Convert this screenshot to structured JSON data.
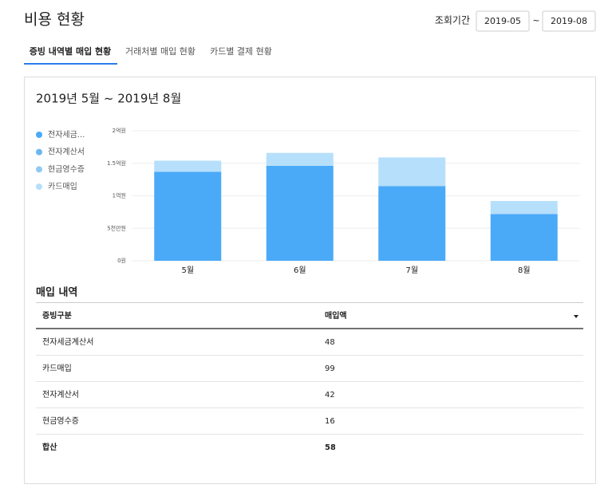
{
  "header": {
    "title": "비용 현황",
    "period_label": "조회기간",
    "start": "2019-05",
    "separator": "~",
    "end": "2019-08"
  },
  "tabs": [
    "증빙 내역별 매입 현황",
    "거래처별 매입 현황",
    "카드별 결제 현황"
  ],
  "chart_data": {
    "type": "stacked_bar",
    "title": "2019년 5월 ~ 2019년 8월",
    "categories": [
      "5월",
      "6월",
      "7월",
      "8월"
    ],
    "series": [
      {
        "name": "전자세금...",
        "color": "#4aaaf7",
        "values": [
          137000000,
          146000000,
          115000000,
          72000000
        ]
      },
      {
        "name": "전자계산서",
        "color": "#6bb6ef",
        "values": [
          0,
          0,
          0,
          0
        ]
      },
      {
        "name": "현금영수증",
        "color": "#8fcaf3",
        "values": [
          0,
          0,
          0,
          0
        ]
      },
      {
        "name": "카드매입",
        "color": "#b6dffb",
        "values": [
          17000000,
          20000000,
          44000000,
          20000000
        ]
      }
    ],
    "ylim": [
      0,
      200000000
    ],
    "yticks": [
      {
        "value": 0,
        "label": "0원"
      },
      {
        "value": 50000000,
        "label": "5천만원"
      },
      {
        "value": 100000000,
        "label": "1억원"
      },
      {
        "value": 150000000,
        "label": "1.5억원"
      },
      {
        "value": 200000000,
        "label": "2억원"
      }
    ],
    "grid": true
  },
  "table": {
    "title": "매입 내역",
    "columns": [
      "증빙구분",
      "매입액"
    ],
    "rows": [
      [
        "전자세금계산서",
        "48"
      ],
      [
        "카드매입",
        "99"
      ],
      [
        "전자계산서",
        "42"
      ],
      [
        "현금영수증",
        "16"
      ],
      [
        "합산",
        "58"
      ]
    ]
  }
}
